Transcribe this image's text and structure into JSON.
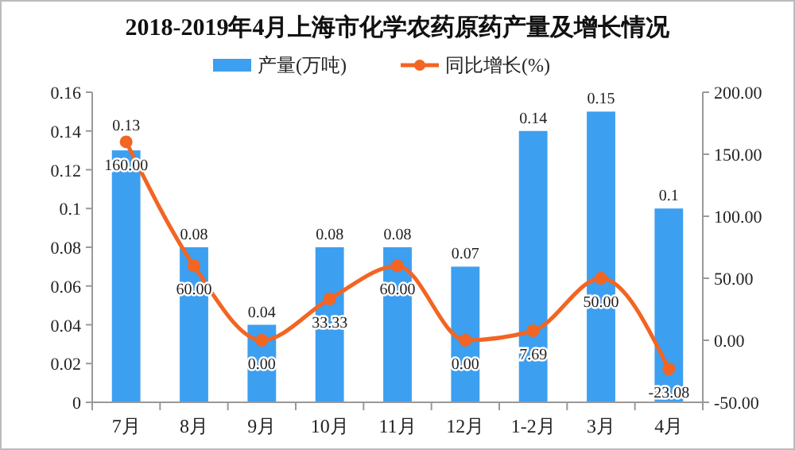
{
  "chart_data": {
    "type": "bar",
    "title": "2018-2019年4月上海市化学农药原药产量及增长情况",
    "categories": [
      "7月",
      "8月",
      "9月",
      "10月",
      "11月",
      "12月",
      "1-2月",
      "3月",
      "4月"
    ],
    "series": [
      {
        "name": "产量(万吨)",
        "color": "#3d9ff0",
        "values": [
          0.13,
          0.08,
          0.04,
          0.08,
          0.08,
          0.07,
          0.14,
          0.15,
          0.1
        ],
        "value_labels": [
          "0.13",
          "0.08",
          "0.04",
          "0.08",
          "0.08",
          "0.07",
          "0.14",
          "0.15",
          "0.1"
        ]
      },
      {
        "name": "同比增长(%)",
        "type": "line",
        "axis": "y2",
        "color": "#f26522",
        "marker": "circle",
        "values": [
          160,
          60,
          0,
          33.33,
          60,
          0,
          7.69,
          50,
          -23.08
        ],
        "value_labels": [
          "160.00",
          "60.00",
          "0.00",
          "33.33",
          "60.00",
          "0.00",
          "7.69",
          "50.00",
          "-23.08"
        ]
      }
    ],
    "ylim": [
      0,
      0.16
    ],
    "yticks": [
      {
        "value": 0,
        "label": "0"
      },
      {
        "value": 0.02,
        "label": "0.02"
      },
      {
        "value": 0.04,
        "label": "0.04"
      },
      {
        "value": 0.06,
        "label": "0.06"
      },
      {
        "value": 0.08,
        "label": "0.08"
      },
      {
        "value": 0.1,
        "label": "0.1"
      },
      {
        "value": 0.12,
        "label": "0.12"
      },
      {
        "value": 0.14,
        "label": "0.14"
      },
      {
        "value": 0.16,
        "label": "0.16"
      }
    ],
    "y2lim": [
      -50,
      200
    ],
    "y2ticks": [
      {
        "value": -50,
        "label": "-50.00"
      },
      {
        "value": 0,
        "label": "0.00"
      },
      {
        "value": 50,
        "label": "50.00"
      },
      {
        "value": 100,
        "label": "100.00"
      },
      {
        "value": 150,
        "label": "150.00"
      },
      {
        "value": 200,
        "label": "200.00"
      }
    ],
    "legend": "top",
    "grid": false
  }
}
